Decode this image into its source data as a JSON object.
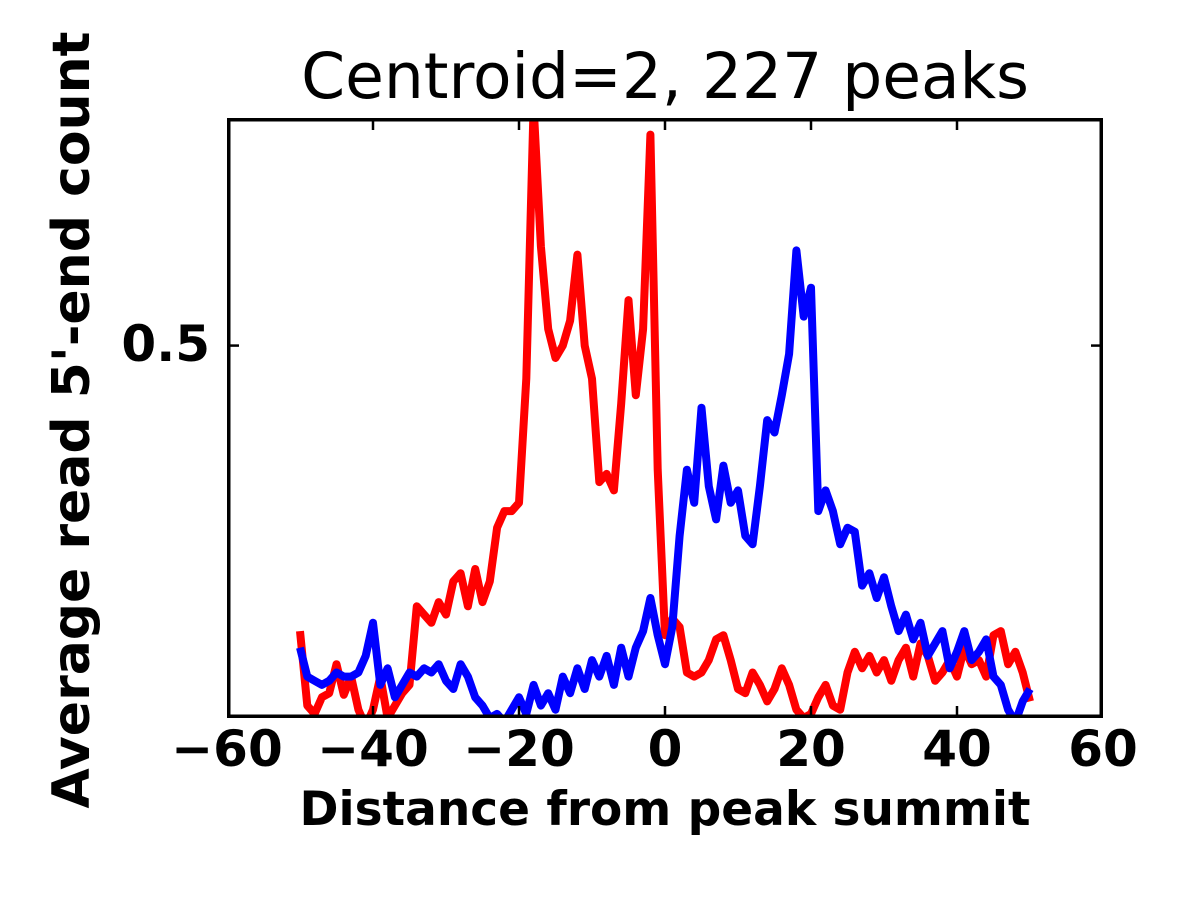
{
  "chart_data": {
    "type": "line",
    "title": "Centroid=2, 227 peaks",
    "xlabel": "Distance from peak summit",
    "ylabel": "Average read 5'-end count",
    "xlim": [
      -60,
      60
    ],
    "ylim": [
      0.05,
      0.775
    ],
    "xticks": [
      -60,
      -40,
      -20,
      0,
      20,
      40,
      60
    ],
    "xtick_labels": [
      "−60",
      "−40",
      "−20",
      "0",
      "20",
      "40",
      "60"
    ],
    "yticks": [
      0.5
    ],
    "ytick_labels": [
      "0.5"
    ],
    "grid": false,
    "legend_position": "none",
    "line_width": 8,
    "x": [
      -50,
      -49,
      -48,
      -47,
      -46,
      -45,
      -44,
      -43,
      -42,
      -41,
      -40,
      -39,
      -38,
      -37,
      -36,
      -35,
      -34,
      -33,
      -32,
      -31,
      -30,
      -29,
      -28,
      -27,
      -26,
      -25,
      -24,
      -23,
      -22,
      -21,
      -20,
      -19,
      -18,
      -17,
      -16,
      -15,
      -14,
      -13,
      -12,
      -11,
      -10,
      -9,
      -8,
      -7,
      -6,
      -5,
      -4,
      -3,
      -2,
      -1,
      0,
      1,
      2,
      3,
      4,
      5,
      6,
      7,
      8,
      9,
      10,
      11,
      12,
      13,
      14,
      15,
      16,
      17,
      18,
      19,
      20,
      21,
      22,
      23,
      24,
      25,
      26,
      27,
      28,
      29,
      30,
      31,
      32,
      33,
      34,
      35,
      36,
      37,
      38,
      39,
      40,
      41,
      42,
      43,
      44,
      45,
      46,
      47,
      48,
      49,
      50
    ],
    "series": [
      {
        "name": "red-profile",
        "color": "#ff0000",
        "values": [
          0.155,
          0.065,
          0.055,
          0.075,
          0.08,
          0.115,
          0.078,
          0.1,
          0.06,
          0.04,
          0.06,
          0.1,
          0.05,
          0.065,
          0.08,
          0.09,
          0.185,
          0.175,
          0.165,
          0.19,
          0.175,
          0.215,
          0.225,
          0.185,
          0.23,
          0.19,
          0.215,
          0.28,
          0.3,
          0.3,
          0.31,
          0.46,
          0.79,
          0.62,
          0.52,
          0.485,
          0.5,
          0.53,
          0.61,
          0.5,
          0.46,
          0.335,
          0.345,
          0.325,
          0.43,
          0.555,
          0.44,
          0.52,
          0.755,
          0.35,
          0.15,
          0.17,
          0.16,
          0.105,
          0.1,
          0.105,
          0.12,
          0.145,
          0.15,
          0.12,
          0.085,
          0.08,
          0.105,
          0.09,
          0.07,
          0.085,
          0.11,
          0.09,
          0.06,
          0.05,
          0.055,
          0.075,
          0.09,
          0.065,
          0.06,
          0.105,
          0.13,
          0.11,
          0.125,
          0.105,
          0.12,
          0.095,
          0.12,
          0.135,
          0.1,
          0.14,
          0.125,
          0.095,
          0.105,
          0.12,
          0.1,
          0.135,
          0.115,
          0.12,
          0.1,
          0.15,
          0.155,
          0.115,
          0.13,
          0.105,
          0.07
        ]
      },
      {
        "name": "blue-profile",
        "color": "#0000ff",
        "values": [
          0.135,
          0.1,
          0.095,
          0.09,
          0.095,
          0.105,
          0.1,
          0.1,
          0.105,
          0.125,
          0.165,
          0.09,
          0.11,
          0.075,
          0.09,
          0.105,
          0.1,
          0.11,
          0.105,
          0.115,
          0.095,
          0.085,
          0.115,
          0.1,
          0.075,
          0.065,
          0.05,
          0.055,
          0.045,
          0.06,
          0.075,
          0.055,
          0.09,
          0.065,
          0.08,
          0.06,
          0.1,
          0.08,
          0.11,
          0.085,
          0.12,
          0.1,
          0.125,
          0.09,
          0.135,
          0.1,
          0.135,
          0.155,
          0.195,
          0.15,
          0.115,
          0.16,
          0.27,
          0.35,
          0.31,
          0.425,
          0.33,
          0.29,
          0.355,
          0.31,
          0.325,
          0.27,
          0.26,
          0.33,
          0.41,
          0.395,
          0.44,
          0.49,
          0.615,
          0.535,
          0.57,
          0.3,
          0.325,
          0.3,
          0.26,
          0.28,
          0.275,
          0.21,
          0.225,
          0.195,
          0.22,
          0.185,
          0.155,
          0.175,
          0.145,
          0.165,
          0.125,
          0.14,
          0.155,
          0.11,
          0.13,
          0.155,
          0.12,
          0.13,
          0.145,
          0.1,
          0.09,
          0.06,
          0.045,
          0.07,
          0.085
        ]
      }
    ]
  }
}
